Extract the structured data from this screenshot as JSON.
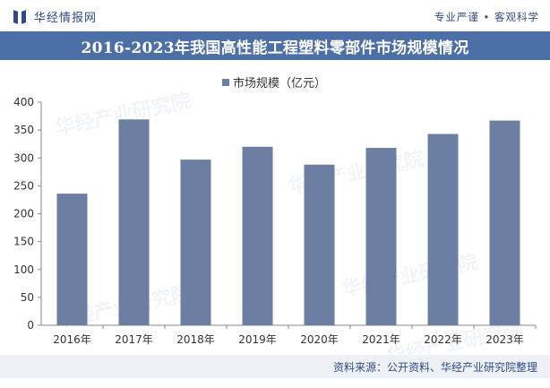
{
  "header": {
    "brand": "华经情报网",
    "slogan": "专业严谨 • 客观科学"
  },
  "chart_data": {
    "type": "bar",
    "title": "2016-2023年我国高性能工程塑料零部件市场规模情况",
    "categories": [
      "2016年",
      "2017年",
      "2018年",
      "2019年",
      "2020年",
      "2021年",
      "2022年",
      "2023年"
    ],
    "series": [
      {
        "name": "市场规模（亿元）",
        "values": [
          236,
          369,
          297,
          320,
          288,
          318,
          343,
          367
        ]
      }
    ],
    "yticks": [
      0,
      50,
      100,
      150,
      200,
      250,
      300,
      350,
      400
    ],
    "ylim": [
      0,
      400
    ],
    "grid": false,
    "legend": "top-center",
    "colors": {
      "bar": "#6c7fa3",
      "axis": "#888888"
    }
  },
  "watermark": "华经产业研究院",
  "footer": {
    "source": "资料来源：公开资料、华经产业研究院整理"
  }
}
